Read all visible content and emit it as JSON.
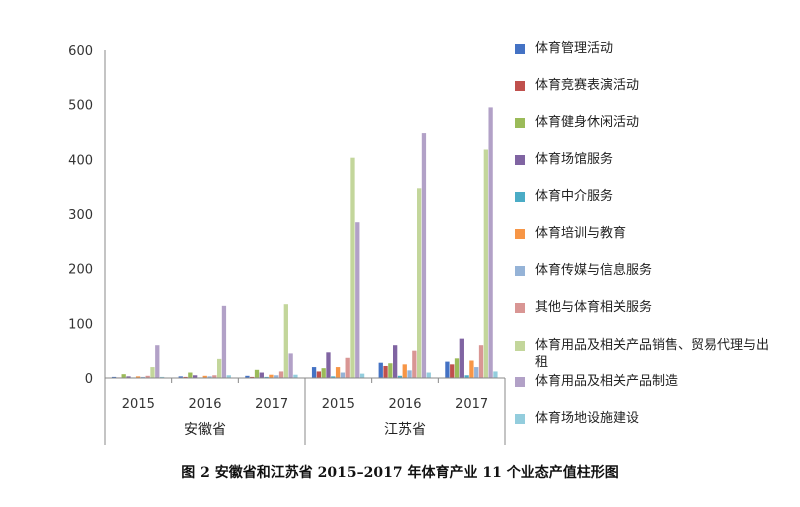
{
  "chart_data": {
    "type": "bar",
    "title": "",
    "xlabel": "",
    "ylabel": "",
    "ylim": [
      0,
      600
    ],
    "yticks": [
      "0",
      "100",
      "200",
      "300",
      "400",
      "500",
      "600"
    ],
    "grid": false,
    "legend_position": "right",
    "groups": [
      {
        "name": "安徽省",
        "years": [
          "2015",
          "2016",
          "2017"
        ]
      },
      {
        "name": "江苏省",
        "years": [
          "2015",
          "2016",
          "2017"
        ]
      }
    ],
    "categories": [
      "2015",
      "2016",
      "2017",
      "2015",
      "2016",
      "2017"
    ],
    "series": [
      {
        "name": "体育管理活动",
        "color": "#4472C4",
        "values": [
          2,
          3,
          4,
          20,
          28,
          30
        ]
      },
      {
        "name": "体育竞赛表演活动",
        "color": "#C0504D",
        "values": [
          1,
          2,
          2,
          12,
          22,
          25
        ]
      },
      {
        "name": "体育健身休闲活动",
        "color": "#9BBB59",
        "values": [
          7,
          10,
          15,
          18,
          27,
          36
        ]
      },
      {
        "name": "体育场馆服务",
        "color": "#8064A2",
        "values": [
          3,
          5,
          10,
          47,
          60,
          72
        ]
      },
      {
        "name": "体育中介服务",
        "color": "#4BACC6",
        "values": [
          1,
          1,
          2,
          3,
          4,
          5
        ]
      },
      {
        "name": "体育培训与教育",
        "color": "#F79646",
        "values": [
          3,
          4,
          6,
          20,
          25,
          32
        ]
      },
      {
        "name": "体育传媒与信息服务",
        "color": "#95B3D7",
        "values": [
          2,
          3,
          5,
          10,
          14,
          20
        ]
      },
      {
        "name": "其他与体育相关服务",
        "color": "#D99694",
        "values": [
          4,
          5,
          12,
          37,
          50,
          60
        ]
      },
      {
        "name": "体育用品及相关产品销售、贸易代理与出租",
        "color": "#C3D69B",
        "values": [
          20,
          35,
          135,
          403,
          347,
          418
        ]
      },
      {
        "name": "体育用品及相关产品制造",
        "color": "#B2A1C7",
        "values": [
          60,
          132,
          45,
          285,
          448,
          495
        ]
      },
      {
        "name": "体育场地设施建设",
        "color": "#93CDDD",
        "values": [
          2,
          5,
          6,
          8,
          10,
          12
        ]
      }
    ]
  },
  "caption": "图 2 安徽省和江苏省 2015–2017 年体育产业 11 个业态产值柱形图"
}
